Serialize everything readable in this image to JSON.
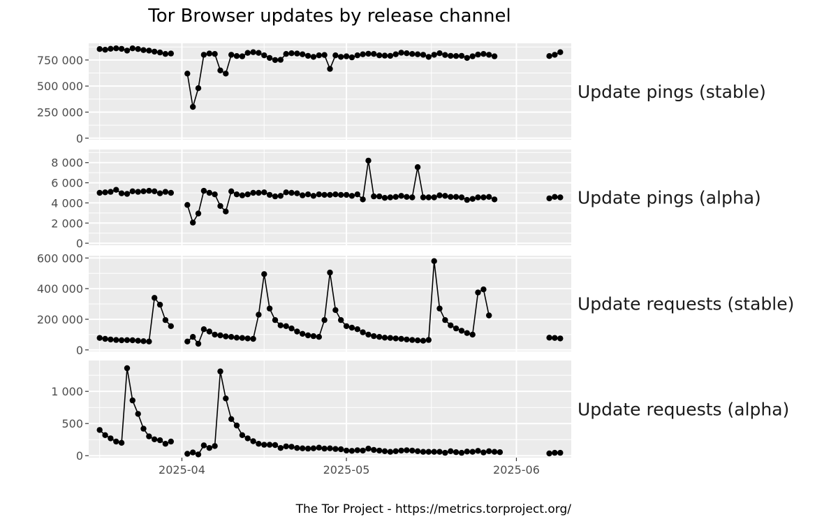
{
  "chart_data": {
    "type": "line",
    "title": "Tor Browser updates by release channel",
    "caption": "The Tor Project - https://metrics.torproject.org/",
    "x_tick_labels": [
      "2025-04",
      "2025-05",
      "2025-06"
    ],
    "x_ticks": [
      "2025-04-01",
      "2025-05-01",
      "2025-06-01"
    ],
    "x_range": [
      "2025-03-15",
      "2025-06-11"
    ],
    "grid": true,
    "markers": "points",
    "facets": [
      {
        "label": "Update pings (stable)",
        "ylim": [
          -15000,
          910000
        ],
        "y_ticks": [
          0,
          250000,
          500000,
          750000
        ],
        "y_tick_labels": [
          "0",
          "250 000",
          "500 000",
          "750 000"
        ],
        "segments": [
          {
            "start": "2025-03-17",
            "values": [
              855000,
              848000,
              858000,
              862000,
              857000,
              840000,
              862000,
              855000,
              845000,
              840000,
              830000,
              822000,
              808000,
              812000
            ]
          },
          {
            "start": "2025-04-02",
            "values": [
              620000,
              300000,
              480000,
              800000,
              812000,
              808000,
              650000,
              620000,
              800000,
              788000,
              785000,
              818000,
              825000,
              818000,
              795000,
              770000,
              750000,
              752000,
              808000,
              815000,
              812000,
              805000,
              790000,
              780000,
              795000,
              798000,
              665000,
              795000,
              780000,
              785000,
              775000,
              795000,
              805000,
              810000,
              808000,
              795000,
              792000,
              790000,
              805000,
              820000,
              815000,
              808000,
              805000,
              800000,
              780000,
              800000,
              815000,
              798000,
              790000,
              788000,
              790000,
              770000,
              785000,
              802000,
              808000,
              800000,
              785000
            ]
          },
          {
            "start": "2025-06-07",
            "values": [
              788000,
              800000,
              825000
            ]
          }
        ]
      },
      {
        "label": "Update pings (alpha)",
        "ylim": [
          -200,
          9300
        ],
        "y_ticks": [
          0,
          2000,
          4000,
          6000,
          8000
        ],
        "y_tick_labels": [
          "0",
          "2 000",
          "4 000",
          "6 000",
          "8 000"
        ],
        "segments": [
          {
            "start": "2025-03-17",
            "values": [
              5000,
              5050,
              5100,
              5300,
              4950,
              4900,
              5150,
              5100,
              5150,
              5200,
              5150,
              4950,
              5100,
              5000
            ]
          },
          {
            "start": "2025-04-02",
            "values": [
              3800,
              2050,
              2950,
              5200,
              5000,
              4850,
              3700,
              3150,
              5150,
              4850,
              4750,
              4850,
              5000,
              5000,
              5050,
              4800,
              4650,
              4700,
              5050,
              5000,
              4950,
              4750,
              4850,
              4700,
              4850,
              4800,
              4800,
              4850,
              4800,
              4800,
              4700,
              4850,
              4350,
              8200,
              4650,
              4650,
              4500,
              4550,
              4600,
              4700,
              4600,
              4550,
              7550,
              4550,
              4550,
              4550,
              4750,
              4700,
              4600,
              4600,
              4550,
              4300,
              4400,
              4550,
              4550,
              4600,
              4350
            ]
          },
          {
            "start": "2025-06-07",
            "values": [
              4450,
              4600,
              4550
            ]
          }
        ]
      },
      {
        "label": "Update requests (stable)",
        "ylim": [
          -10000,
          615000
        ],
        "y_ticks": [
          0,
          200000,
          400000,
          600000
        ],
        "y_tick_labels": [
          "0",
          "200 000",
          "400 000",
          "600 000"
        ],
        "segments": [
          {
            "start": "2025-03-17",
            "values": [
              78000,
              72000,
              68000,
              65000,
              63000,
              64000,
              63000,
              60000,
              57000,
              55000,
              340000,
              295000,
              195000,
              155000
            ]
          },
          {
            "start": "2025-04-02",
            "values": [
              55000,
              85000,
              40000,
              135000,
              120000,
              100000,
              95000,
              88000,
              85000,
              80000,
              78000,
              75000,
              72000,
              230000,
              495000,
              270000,
              195000,
              160000,
              155000,
              140000,
              120000,
              105000,
              95000,
              90000,
              85000,
              195000,
              505000,
              260000,
              195000,
              155000,
              145000,
              135000,
              115000,
              100000,
              90000,
              85000,
              80000,
              78000,
              75000,
              72000,
              68000,
              65000,
              62000,
              60000,
              65000,
              580000,
              270000,
              195000,
              160000,
              140000,
              125000,
              110000,
              100000,
              375000,
              395000,
              225000
            ]
          },
          {
            "start": "2025-06-07",
            "values": [
              80000,
              78000,
              75000
            ]
          }
        ]
      },
      {
        "label": "Update requests (alpha)",
        "ylim": [
          -30,
          1480
        ],
        "y_ticks": [
          0,
          500,
          1000
        ],
        "y_tick_labels": [
          "0",
          "500",
          "1 000"
        ],
        "segments": [
          {
            "start": "2025-03-17",
            "values": [
              400,
              320,
              270,
              220,
              200,
              1360,
              860,
              650,
              420,
              300,
              255,
              240,
              185,
              220
            ]
          },
          {
            "start": "2025-04-02",
            "values": [
              30,
              50,
              20,
              160,
              120,
              150,
              1310,
              890,
              570,
              470,
              320,
              270,
              225,
              185,
              170,
              170,
              165,
              120,
              145,
              140,
              120,
              115,
              110,
              115,
              125,
              110,
              115,
              105,
              100,
              80,
              75,
              85,
              80,
              110,
              90,
              80,
              70,
              60,
              70,
              80,
              85,
              80,
              70,
              60,
              60,
              60,
              60,
              45,
              70,
              55,
              45,
              65,
              60,
              75,
              50,
              70,
              60,
              55
            ]
          },
          {
            "start": "2025-06-07",
            "values": [
              35,
              45,
              45
            ]
          }
        ]
      }
    ]
  }
}
